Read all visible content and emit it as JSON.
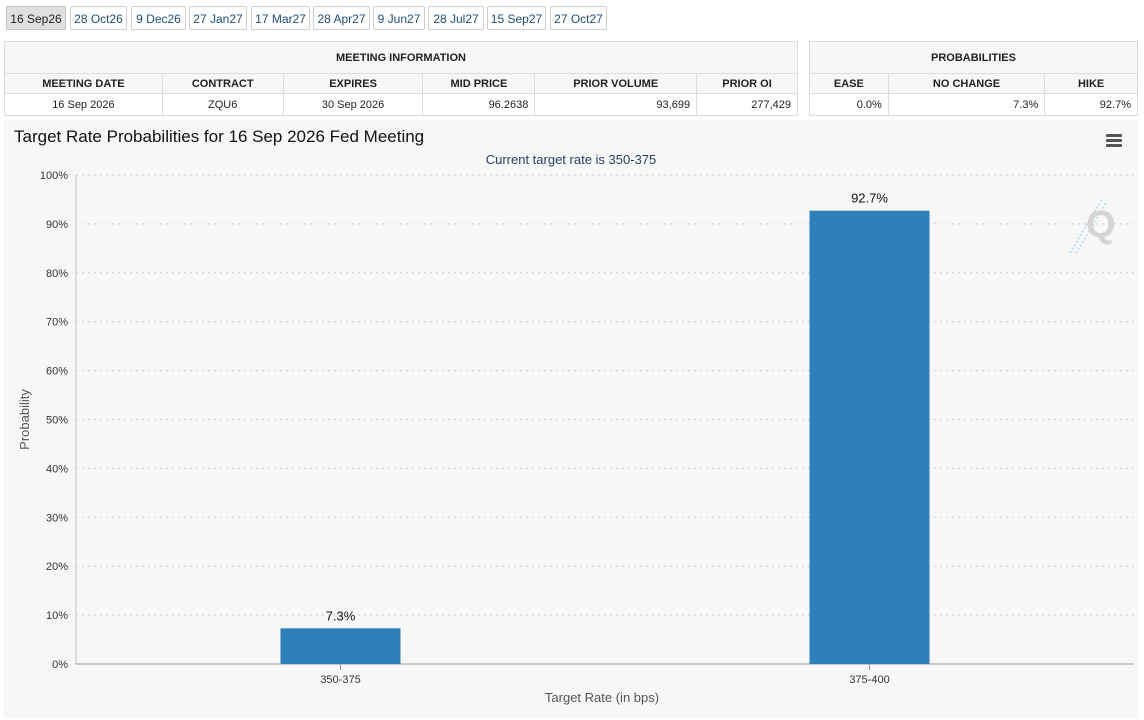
{
  "tabs": [
    {
      "label": "16 Sep26",
      "active": true
    },
    {
      "label": "28 Oct26",
      "active": false
    },
    {
      "label": "9 Dec26",
      "active": false
    },
    {
      "label": "27 Jan27",
      "active": false
    },
    {
      "label": "17 Mar27",
      "active": false
    },
    {
      "label": "28 Apr27",
      "active": false
    },
    {
      "label": "9 Jun27",
      "active": false
    },
    {
      "label": "28 Jul27",
      "active": false
    },
    {
      "label": "15 Sep27",
      "active": false
    },
    {
      "label": "27 Oct27",
      "active": false
    }
  ],
  "meeting_info": {
    "header": "MEETING INFORMATION",
    "columns": [
      "MEETING DATE",
      "CONTRACT",
      "EXPIRES",
      "MID PRICE",
      "PRIOR VOLUME",
      "PRIOR OI"
    ],
    "row": [
      "16 Sep 2026",
      "ZQU6",
      "30 Sep 2026",
      "96.2638",
      "93,699",
      "277,429"
    ]
  },
  "probabilities": {
    "header": "PROBABILITIES",
    "columns": [
      "EASE",
      "NO CHANGE",
      "HIKE"
    ],
    "row": [
      "0.0%",
      "7.3%",
      "92.7%"
    ]
  },
  "chart": {
    "menu_icon": "hamburger-menu-icon",
    "logo_icon": "quikstrike-q-logo-icon",
    "bar_color": "#2f7fba"
  },
  "chart_data": {
    "type": "bar",
    "title": "Target Rate Probabilities for 16 Sep 2026 Fed Meeting",
    "subtitle": "Current target rate is 350-375",
    "xlabel": "Target Rate (in bps)",
    "ylabel": "Probability",
    "categories": [
      "350-375",
      "375-400"
    ],
    "values": [
      7.3,
      92.7
    ],
    "data_labels": [
      "7.3%",
      "92.7%"
    ],
    "ylim": [
      0,
      100
    ],
    "yticks": [
      "0%",
      "10%",
      "20%",
      "30%",
      "40%",
      "50%",
      "60%",
      "70%",
      "80%",
      "90%",
      "100%"
    ],
    "grid": true,
    "legend": "none"
  }
}
